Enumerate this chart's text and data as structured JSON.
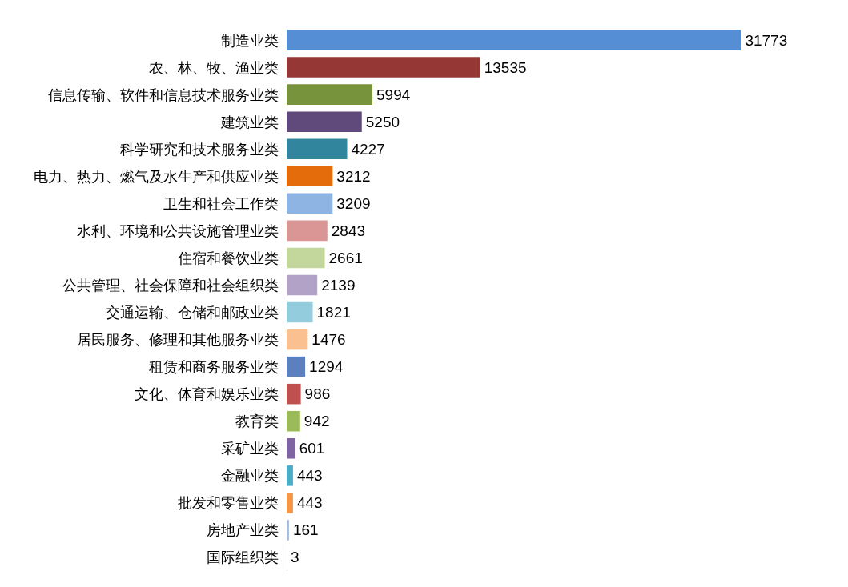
{
  "chart_data": {
    "type": "bar",
    "orientation": "horizontal",
    "data_labels": true,
    "categories": [
      "制造业类",
      "农、林、牧、渔业类",
      "信息传输、软件和信息技术服务业类",
      "建筑业类",
      "科学研究和技术服务业类",
      "电力、热力、燃气及水生产和供应业类",
      "卫生和社会工作类",
      "水利、环境和公共设施管理业类",
      "住宿和餐饮业类",
      "公共管理、社会保障和社会组织类",
      "交通运输、仓储和邮政业类",
      "居民服务、修理和其他服务业类",
      "租赁和商务服务业类",
      "文化、体育和娱乐业类",
      "教育类",
      "采矿业类",
      "金融业类",
      "批发和零售业类",
      "房地产业类",
      "国际组织类"
    ],
    "values": [
      31773,
      13535,
      5994,
      5250,
      4227,
      3212,
      3209,
      2843,
      2661,
      2139,
      1821,
      1476,
      1294,
      986,
      942,
      601,
      443,
      443,
      161,
      3
    ],
    "colors": [
      "#558ed5",
      "#953735",
      "#77933c",
      "#604a7b",
      "#31859c",
      "#e46c0a",
      "#8eb4e3",
      "#d99694",
      "#c3d69b",
      "#b3a2c7",
      "#93cddd",
      "#fac090",
      "#5b7fbf",
      "#c0504d",
      "#9bbb59",
      "#8064a2",
      "#4bacc6",
      "#f79646",
      "#a6b9d9",
      "#b7b7b7"
    ]
  }
}
